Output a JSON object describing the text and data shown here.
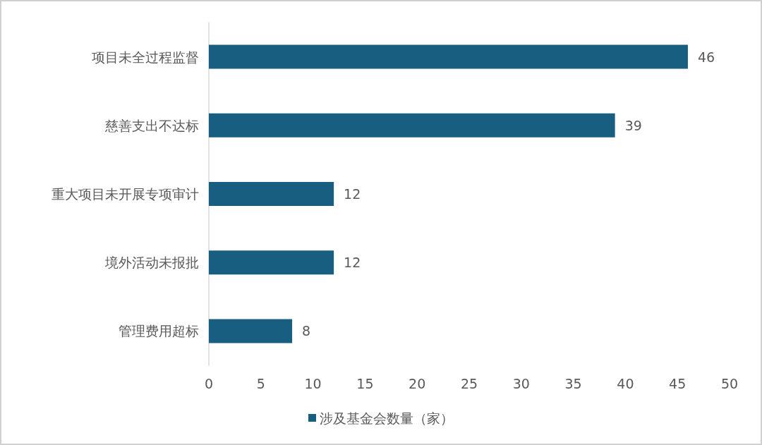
{
  "chart_data": {
    "type": "bar",
    "orientation": "horizontal",
    "categories": [
      "项目未全过程监督",
      "慈善支出不达标",
      "重大项目未开展专项审计",
      "境外活动未报批",
      "管理费用超标"
    ],
    "series": [
      {
        "name": "涉及基金会数量（家）",
        "color": "#175e80",
        "values": [
          46,
          39,
          12,
          12,
          8
        ]
      }
    ],
    "xlim": [
      0,
      50
    ],
    "xticks": [
      0,
      5,
      10,
      15,
      20,
      25,
      30,
      35,
      40,
      45,
      50
    ],
    "data_labels": true,
    "legend": "bottom",
    "grid": false
  }
}
